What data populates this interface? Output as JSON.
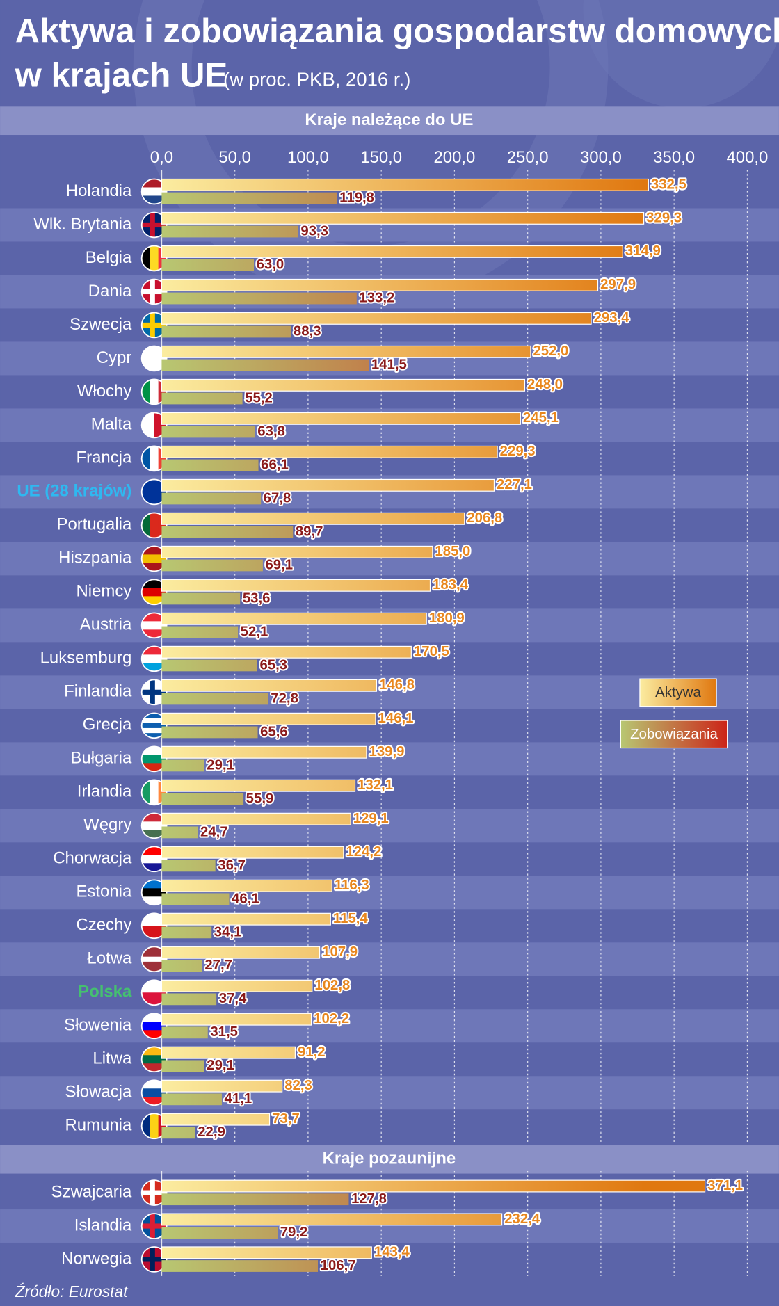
{
  "chart_data": {
    "type": "grouped-hbar",
    "title": "Aktywa i zobowiązania gospodarstw domowych",
    "title_line2": "w krajach UE",
    "subtitle": "(w proc. PKB, 2016 r.)",
    "source": "Źródło: Eurostat",
    "xlim": [
      0,
      400
    ],
    "xticks": [
      {
        "value": 0,
        "label": "0,0"
      },
      {
        "value": 50,
        "label": "50,0"
      },
      {
        "value": 100,
        "label": "100,0"
      },
      {
        "value": 150,
        "label": "150,0"
      },
      {
        "value": 200,
        "label": "200,0"
      },
      {
        "value": 250,
        "label": "250,0"
      },
      {
        "value": 300,
        "label": "300,0"
      },
      {
        "value": 350,
        "label": "350,0"
      },
      {
        "value": 400,
        "label": "400,0"
      }
    ],
    "grid": true,
    "series": [
      {
        "name": "Aktywa",
        "color": [
          "#fbeca0",
          "#e07810"
        ],
        "label_color": "#e8871e"
      },
      {
        "name": "Zobowiązania",
        "color": [
          "#b8c772",
          "#cc2418"
        ],
        "label_color": "#8b1a1a"
      }
    ],
    "groups": [
      {
        "label": "Kraje należące do UE",
        "categories": [
          "Holandia",
          "Wlk. Brytania",
          "Belgia",
          "Dania",
          "Szwecja",
          "Cypr",
          "Włochy",
          "Malta",
          "Francja",
          "UE (28 krajów)",
          "Portugalia",
          "Hiszpania",
          "Niemcy",
          "Austria",
          "Luksemburg",
          "Finlandia",
          "Grecja",
          "Bułgaria",
          "Irlandia",
          "Węgry",
          "Chorwacja",
          "Estonia",
          "Czechy",
          "Łotwa",
          "Polska",
          "Słowenia",
          "Litwa",
          "Słowacja",
          "Rumunia"
        ],
        "label_colors": {
          "9": "#2fb8f0",
          "24": "#45c070"
        },
        "series": [
          {
            "values": [
              332.5,
              329.3,
              314.9,
              297.9,
              293.4,
              252.0,
              248.0,
              245.1,
              229.3,
              227.1,
              206.8,
              185.0,
              183.4,
              180.9,
              170.5,
              146.8,
              146.1,
              139.9,
              132.1,
              129.1,
              124.2,
              116.3,
              115.4,
              107.9,
              102.8,
              102.2,
              91.2,
              82.3,
              73.7
            ],
            "value_labels": [
              "332,5",
              "329,3",
              "314,9",
              "297,9",
              "293,4",
              "252,0",
              "248,0",
              "245,1",
              "229,3",
              "227,1",
              "206,8",
              "185,0",
              "183,4",
              "180,9",
              "170,5",
              "146,8",
              "146,1",
              "139,9",
              "132,1",
              "129,1",
              "124,2",
              "116,3",
              "115,4",
              "107,9",
              "102,8",
              "102,2",
              "91,2",
              "82,3",
              "73,7"
            ]
          },
          {
            "values": [
              119.8,
              93.3,
              63.0,
              133.2,
              88.3,
              141.5,
              55.2,
              63.8,
              66.1,
              67.8,
              89.7,
              69.1,
              53.6,
              52.1,
              65.3,
              72.8,
              65.6,
              29.1,
              55.9,
              24.7,
              36.7,
              46.1,
              34.1,
              27.7,
              37.4,
              31.5,
              29.1,
              41.1,
              22.9
            ],
            "value_labels": [
              "119,8",
              "93,3",
              "63,0",
              "133,2",
              "88,3",
              "141,5",
              "55,2",
              "63,8",
              "66,1",
              "67,8",
              "89,7",
              "69,1",
              "53,6",
              "52,1",
              "65,3",
              "72,8",
              "65,6",
              "29,1",
              "55,9",
              "24,7",
              "36,7",
              "46,1",
              "34,1",
              "27,7",
              "37,4",
              "31,5",
              "29,1",
              "41,1",
              "22,9"
            ]
          }
        ]
      },
      {
        "label": "Kraje pozaunijne",
        "categories": [
          "Szwajcaria",
          "Islandia",
          "Norwegia"
        ],
        "series": [
          {
            "values": [
              371.1,
              232.4,
              143.4
            ],
            "value_labels": [
              "371,1",
              "232,4",
              "143,4"
            ]
          },
          {
            "values": [
              127.8,
              79.2,
              106.7
            ],
            "value_labels": [
              "127,8",
              "79,2",
              "106,7"
            ]
          }
        ]
      }
    ]
  }
}
